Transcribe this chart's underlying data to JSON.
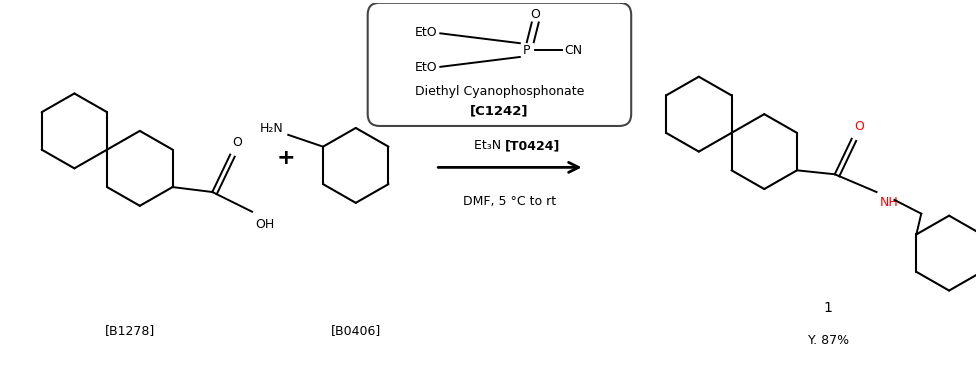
{
  "background_color": "#ffffff",
  "figure_width": 9.79,
  "figure_height": 3.85,
  "dpi": 100,
  "black": "#000000",
  "red": "#ff0000",
  "gray": "#333333",
  "box_title": "Diethyl Cyanophosphonate",
  "box_subtitle": "[C1242]",
  "arrow_label1": "C1242",
  "arrow_label2_pre": "Et₃N ",
  "arrow_label2_bold": "[T0424]",
  "arrow_label3": "DMF, 5 °C to rt",
  "label_b1278": "[B1278]",
  "label_b0406": "[B0406]",
  "label_product": "1",
  "label_yield": "Y. 87%",
  "plus_sign": "+"
}
